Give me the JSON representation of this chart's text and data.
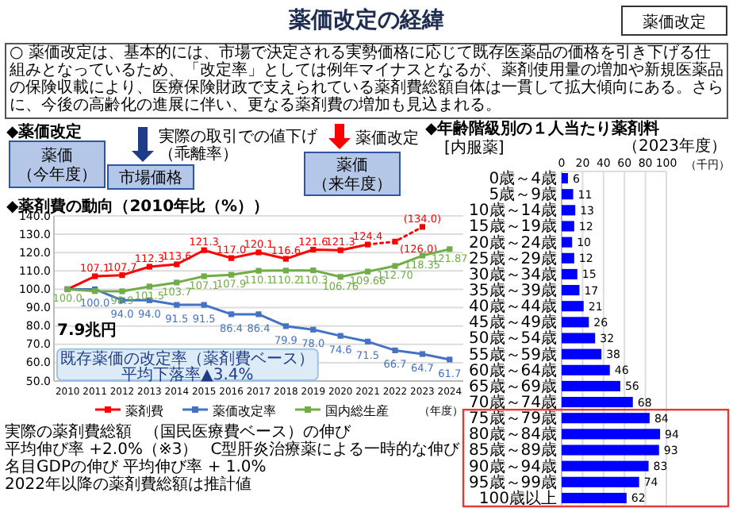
{
  "chart_data": [
    {
      "type": "other",
      "title": "薬価改定の経緯",
      "annotations": [
        "薬価改定",
        "○ 薬価改定は、基本的には、市場で決定される実勢価格に応じて既存医薬品の価格を引き下げる仕組みとなっているため、「改定率」としては例年マイナスとなるが、薬剤使用量の増加や新規医薬品の保険収載により、医療保険財政で支えられている薬剤費総額自体は一貫して拡大傾向にある。さらに、今後の高齢化の進展に伴い、更なる薬剤費の増加も見込まれる。",
        "◆薬価改定",
        "薬価",
        "（今年度）",
        "実際の取引での値下げ",
        "（乖離率）",
        "市場価格",
        "薬価改定",
        "薬価",
        "（来年度）"
      ]
    },
    {
      "type": "line",
      "title": "◆薬剤費の動向（2010年比（%））",
      "xlabel": "（年度）",
      "categories": [
        "2010",
        "2011",
        "2012",
        "2013",
        "2014",
        "2015",
        "2016",
        "2017",
        "2018",
        "2019",
        "2020",
        "2021",
        "2022",
        "2023",
        "2024"
      ],
      "ylim": [
        50,
        140
      ],
      "yticks": [
        {
          "value": 50,
          "label": "50.0"
        },
        {
          "value": 60,
          "label": "60.0"
        },
        {
          "value": 70,
          "label": "70.0"
        },
        {
          "value": 80,
          "label": "80.0"
        },
        {
          "value": 90,
          "label": "90.0"
        },
        {
          "value": 100,
          "label": "100.0"
        },
        {
          "value": 110,
          "label": "110.0"
        },
        {
          "value": 120,
          "label": "120.0"
        },
        {
          "value": 130,
          "label": "130.0"
        },
        {
          "value": 140,
          "label": "140.0"
        }
      ],
      "grid": "y",
      "legend": "bottom",
      "marker": "square",
      "series": [
        {
          "name": "薬剤費",
          "color": "#ff0000",
          "values": [
            100,
            107.1,
            107.7,
            112.3,
            113.6,
            121.3,
            117.0,
            120.1,
            116.6,
            121.6,
            121.3,
            124.4,
            null,
            null,
            null
          ],
          "value_labels": [
            null,
            "107.1",
            "107.7",
            "112.3",
            "113.6",
            "121.3",
            "117.0",
            "120.1",
            "116.6",
            "121.6",
            "121.3",
            "124.4",
            null,
            null,
            null
          ]
        },
        {
          "color": "#ff0000",
          "line_style": "dotted",
          "values": [
            null,
            null,
            null,
            null,
            null,
            null,
            null,
            null,
            null,
            null,
            null,
            124.4,
            126.0,
            134.0,
            null
          ],
          "value_labels": [
            null,
            null,
            null,
            null,
            null,
            null,
            null,
            null,
            null,
            null,
            null,
            null,
            "(126.0)",
            "(134.0)",
            null
          ]
        },
        {
          "name": "薬価改定率",
          "color": "#4472c4",
          "values": [
            100,
            100,
            94,
            94,
            91.5,
            91.5,
            86.4,
            86.4,
            79.9,
            78.0,
            74.6,
            71.5,
            66.7,
            64.7,
            61.7
          ],
          "value_labels": [
            null,
            "100.0",
            "94.0",
            "94.0",
            "91.5",
            "91.5",
            "86.4",
            "86.4",
            "79.9",
            "78.0",
            "74.6",
            "71.5",
            "66.7",
            "64.7",
            "61.7"
          ]
        },
        {
          "name": "国内総生産",
          "color": "#70ad47",
          "values": [
            100,
            99.0,
            98.9,
            101.5,
            103.7,
            107.1,
            107.9,
            110.1,
            110.2,
            110.3,
            106.76,
            109.66,
            112.7,
            118.35,
            121.87
          ],
          "value_labels": [
            "100.0",
            null,
            "98.9",
            "101.5",
            "103.7",
            "107.1",
            "107.9",
            "110.1",
            "110.2",
            "110.3",
            "106.76",
            "109.66",
            "112.70",
            "118.35",
            "121.87"
          ]
        }
      ],
      "annotations": [
        "実際の薬剤費総額",
        "（国民医療費ベース）の伸び",
        "平均伸び率 +2.0%（※3）",
        "C型肝炎治療薬による一時的な伸び",
        "既存薬価の改定率（薬剤費ベース）",
        "平均下落率▲3.4%",
        "名目GDPの伸び 平均伸び率 + 1.0%",
        "7.9兆円",
        "2022年以降の薬剤費総額は推計値"
      ]
    },
    {
      "type": "bar",
      "orientation": "horizontal",
      "title": "◆年齢階級別の１人当たり薬剤料",
      "subtitle": "（2023年度）",
      "xlabel": "（千円）",
      "annotations": [
        "[内服薬]"
      ],
      "categories": [
        "0歳～4歳",
        "5歳～9歳",
        "10歳～14歳",
        "15歳～19歳",
        "20歳～24歳",
        "25歳～29歳",
        "30歳～34歳",
        "35歳～39歳",
        "40歳～44歳",
        "45歳～49歳",
        "50歳～54歳",
        "55歳～59歳",
        "60歳～64歳",
        "65歳～69歳",
        "70歳～74歳",
        "75歳～79歳",
        "80歳～84歳",
        "85歳～89歳",
        "90歳～94歳",
        "95歳～99歳",
        "100歳以上"
      ],
      "values": [
        6,
        11,
        13,
        12,
        10,
        12,
        15,
        17,
        21,
        26,
        32,
        38,
        46,
        56,
        68,
        84,
        94,
        93,
        83,
        74,
        62
      ],
      "color": "#0000ff",
      "xlim": [
        0,
        100
      ],
      "xticks": [
        0,
        20,
        40,
        60,
        80,
        100
      ],
      "grid": "x",
      "data_labels": true
    }
  ]
}
